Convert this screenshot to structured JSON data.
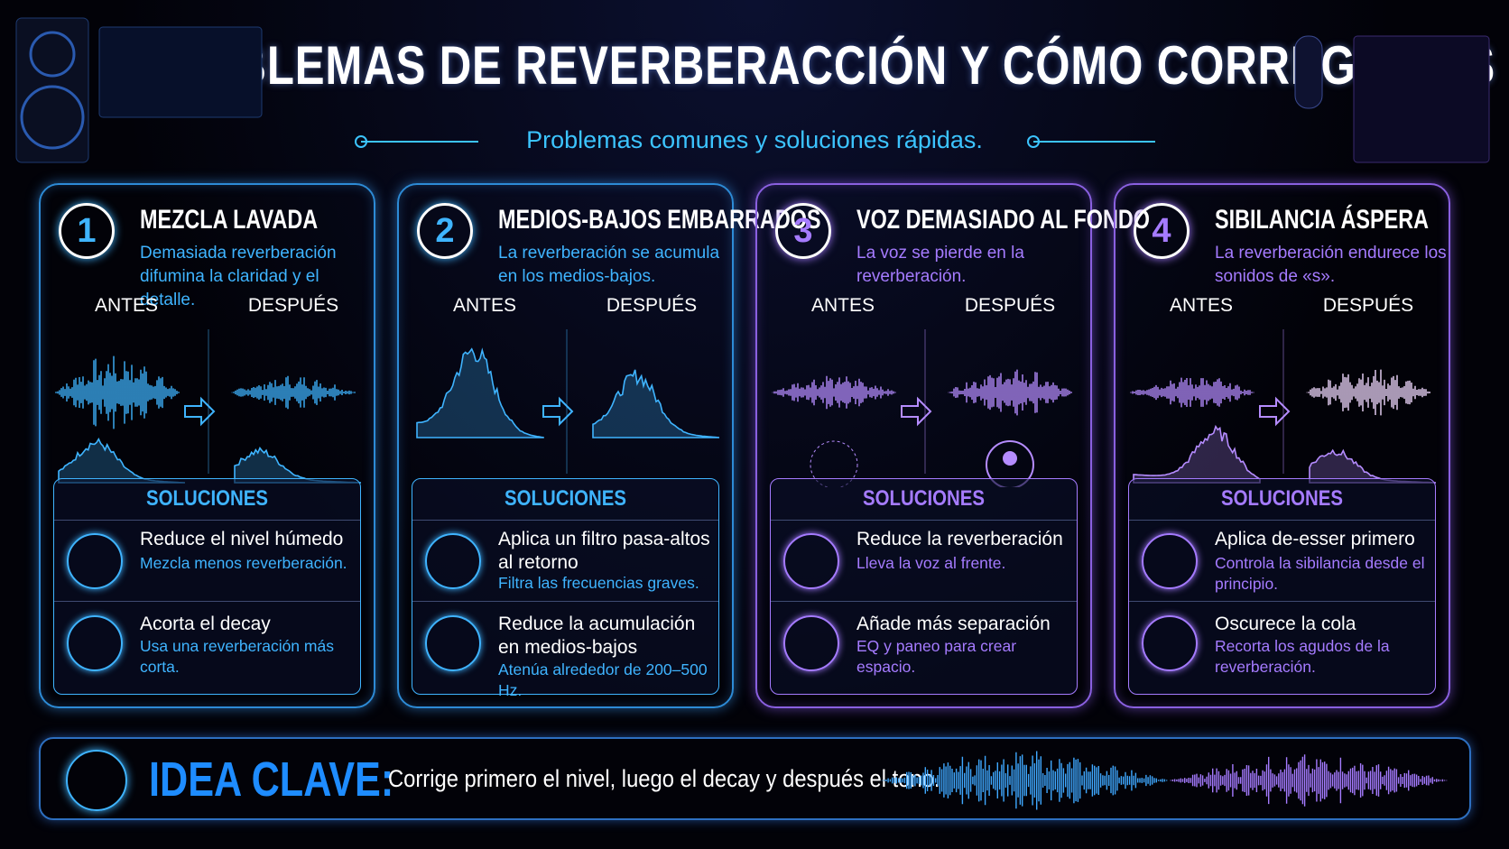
{
  "header": {
    "title": "PROBLEMAS DE REVERBERACCIÓN Y CÓMO CORREGIRLOS",
    "subtitle": "Problemas comunes y soluciones rápidas."
  },
  "cards": [
    {
      "number": "1",
      "title": "MEZCLA LAVADA",
      "description": "Demasiada reverberación difumina la claridad y el detalle.",
      "before_label": "ANTES",
      "after_label": "DESPUÉS",
      "solutions_title": "SOLUCIONES",
      "solutions": [
        {
          "title": "Reduce el nivel húmedo",
          "description": "Mezcla menos reverberación."
        },
        {
          "title": "Acorta el decay",
          "description": "Usa una reverberación más corta."
        }
      ]
    },
    {
      "number": "2",
      "title": "MEDIOS-BAJOS EMBARRADOS",
      "description": "La reverberación se acumula en los medios-bajos.",
      "before_label": "ANTES",
      "after_label": "DESPUÉS",
      "solutions_title": "SOLUCIONES",
      "solutions": [
        {
          "title": "Aplica un filtro pasa-altos al retorno",
          "description": "Filtra las frecuencias graves."
        },
        {
          "title": "Reduce la acumulación en medios-bajos",
          "description": "Atenúa alrededor de 200–500 Hz."
        }
      ]
    },
    {
      "number": "3",
      "title": "VOZ DEMASIADO AL FONDO",
      "description": "La voz se pierde en la reverberación.",
      "before_label": "ANTES",
      "after_label": "DESPUÉS",
      "solutions_title": "SOLUCIONES",
      "solutions": [
        {
          "title": "Reduce la reverberación",
          "description": "Lleva la voz al frente."
        },
        {
          "title": "Añade más separación",
          "description": "EQ y paneo para crear espacio."
        }
      ]
    },
    {
      "number": "4",
      "title": "SIBILANCIA ÁSPERA",
      "description": "La reverberación endurece los sonidos de «s».",
      "before_label": "ANTES",
      "after_label": "DESPUÉS",
      "solutions_title": "SOLUCIONES",
      "solutions": [
        {
          "title": "Aplica de-esser primero",
          "description": "Controla la sibilancia desde el principio."
        },
        {
          "title": "Oscurece la cola",
          "description": "Recorta los agudos de la reverberación."
        }
      ]
    }
  ],
  "key_idea": {
    "label": "IDEA CLAVE:",
    "text": "Corrige primero el nivel, luego el decay y después el tono."
  }
}
